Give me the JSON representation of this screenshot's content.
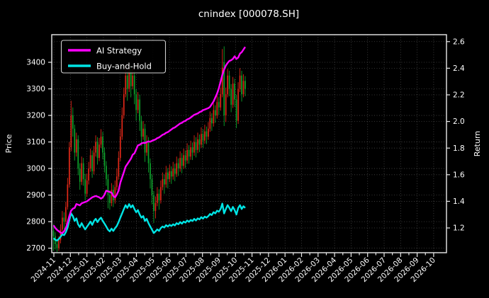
{
  "title": "cnindex [000078.SH]",
  "legend": {
    "items": [
      "AI Strategy",
      "Buy-and-Hold"
    ]
  },
  "colors": {
    "background": "#000000",
    "foreground": "#ffffff",
    "grid": "#4d4d4d",
    "spine": "#eaeaea",
    "candle_up": "#e02818",
    "candle_down": "#0da32b",
    "ai_strategy": "#ff00ff",
    "buy_and_hold": "#00e5e5"
  },
  "chart_data": {
    "type": "candlestick+line",
    "title": "cnindex [000078.SH]",
    "ylabel_left": "Price",
    "ylabel_right": "Return",
    "x_tick_labels": [
      "2024-11",
      "2024-12",
      "2025-01",
      "2025-02",
      "2025-03",
      "2025-04",
      "2025-05",
      "2025-06",
      "2025-07",
      "2025-08",
      "2025-09",
      "2025-10",
      "2025-11",
      "2025-12",
      "2026-01",
      "2026-02",
      "2026-03",
      "2026-04",
      "2026-05",
      "2026-06",
      "2026-07",
      "2026-08",
      "2026-09",
      "2026-10"
    ],
    "data_start_label": "2024-11",
    "data_end_label": "2025-10",
    "left_ticks": [
      2700,
      2800,
      2900,
      3000,
      3100,
      3200,
      3300,
      3400
    ],
    "right_ticks": [
      1.2,
      1.4,
      1.6,
      1.8,
      2.0,
      2.2,
      2.4,
      2.6
    ],
    "right_tick_labels": [
      "1.2",
      "1.4",
      "1.6",
      "1.8",
      "2.0",
      "2.2",
      "2.4",
      "2.6"
    ],
    "ylim_left": [
      2683,
      3504
    ],
    "ylim_right": [
      1.014,
      2.652
    ],
    "grid": true,
    "legend_position": "upper-left",
    "candles": {
      "ohlc": [
        [
          2765,
          2790,
          2690,
          2745
        ],
        [
          2745,
          2760,
          2695,
          2715
        ],
        [
          2715,
          2730,
          2686,
          2700
        ],
        [
          2700,
          2745,
          2690,
          2730
        ],
        [
          2730,
          2790,
          2718,
          2770
        ],
        [
          2770,
          2840,
          2758,
          2815
        ],
        [
          2815,
          2835,
          2772,
          2800
        ],
        [
          2800,
          2875,
          2790,
          2855
        ],
        [
          2855,
          2965,
          2845,
          2940
        ],
        [
          2940,
          3100,
          2928,
          3080
        ],
        [
          3080,
          3255,
          3065,
          3200
        ],
        [
          3200,
          3230,
          3120,
          3150
        ],
        [
          3150,
          3165,
          3030,
          3060
        ],
        [
          3060,
          3135,
          3045,
          3110
        ],
        [
          3110,
          3125,
          2975,
          3000
        ],
        [
          3000,
          3020,
          2920,
          2950
        ],
        [
          2950,
          3045,
          2938,
          3020
        ],
        [
          3020,
          3040,
          2935,
          2960
        ],
        [
          2960,
          2980,
          2880,
          2905
        ],
        [
          2905,
          2980,
          2893,
          2955
        ],
        [
          2955,
          3025,
          2940,
          3000
        ],
        [
          3000,
          3075,
          2988,
          3050
        ],
        [
          3050,
          3068,
          2965,
          2990
        ],
        [
          2990,
          3085,
          2978,
          3060
        ],
        [
          3060,
          3125,
          3045,
          3100
        ],
        [
          3100,
          3118,
          3015,
          3040
        ],
        [
          3040,
          3115,
          3028,
          3090
        ],
        [
          3090,
          3148,
          3078,
          3120
        ],
        [
          3120,
          3138,
          3035,
          3060
        ],
        [
          3060,
          3080,
          2985,
          3010
        ],
        [
          3010,
          3028,
          2935,
          2960
        ],
        [
          2960,
          2978,
          2850,
          2900
        ],
        [
          2900,
          2918,
          2845,
          2870
        ],
        [
          2870,
          2945,
          2858,
          2920
        ],
        [
          2920,
          2938,
          2855,
          2880
        ],
        [
          2880,
          2955,
          2868,
          2930
        ],
        [
          2930,
          3000,
          2918,
          2970
        ],
        [
          2970,
          3065,
          2958,
          3040
        ],
        [
          3040,
          3150,
          3028,
          3120
        ],
        [
          3120,
          3230,
          3108,
          3200
        ],
        [
          3200,
          3305,
          3188,
          3280
        ],
        [
          3280,
          3390,
          3268,
          3350
        ],
        [
          3350,
          3368,
          3255,
          3300
        ],
        [
          3300,
          3395,
          3288,
          3370
        ],
        [
          3370,
          3388,
          3268,
          3310
        ],
        [
          3310,
          3378,
          3298,
          3350
        ],
        [
          3350,
          3368,
          3242,
          3280
        ],
        [
          3280,
          3298,
          3180,
          3220
        ],
        [
          3220,
          3288,
          3208,
          3260
        ],
        [
          3260,
          3278,
          3142,
          3180
        ],
        [
          3180,
          3198,
          3085,
          3120
        ],
        [
          3120,
          3178,
          3108,
          3150
        ],
        [
          3150,
          3168,
          3025,
          3060
        ],
        [
          3060,
          3125,
          3048,
          3100
        ],
        [
          3100,
          3118,
          2985,
          3020
        ],
        [
          3020,
          3038,
          2925,
          2960
        ],
        [
          2960,
          2978,
          2865,
          2900
        ],
        [
          2900,
          2915,
          2795,
          2840
        ],
        [
          2840,
          2895,
          2812,
          2870
        ],
        [
          2870,
          2930,
          2858,
          2905
        ],
        [
          2905,
          2922,
          2845,
          2880
        ],
        [
          2880,
          2955,
          2868,
          2930
        ],
        [
          2930,
          2985,
          2918,
          2960
        ],
        [
          2960,
          2978,
          2905,
          2940
        ],
        [
          2940,
          3010,
          2928,
          2985
        ],
        [
          2985,
          3002,
          2925,
          2960
        ],
        [
          2960,
          3015,
          2948,
          2990
        ],
        [
          2990,
          3008,
          2942,
          2970
        ],
        [
          2970,
          3025,
          2958,
          3000
        ],
        [
          3000,
          3018,
          2952,
          2980
        ],
        [
          2980,
          3045,
          2968,
          3020
        ],
        [
          3020,
          3038,
          2972,
          3000
        ],
        [
          3000,
          3065,
          2988,
          3040
        ],
        [
          3040,
          3058,
          2982,
          3010
        ],
        [
          3010,
          3075,
          2998,
          3050
        ],
        [
          3050,
          3068,
          3002,
          3030
        ],
        [
          3030,
          3095,
          3018,
          3070
        ],
        [
          3070,
          3088,
          3018,
          3045
        ],
        [
          3045,
          3105,
          3033,
          3080
        ],
        [
          3080,
          3098,
          3032,
          3060
        ],
        [
          3060,
          3125,
          3048,
          3100
        ],
        [
          3100,
          3118,
          3042,
          3070
        ],
        [
          3070,
          3135,
          3058,
          3110
        ],
        [
          3110,
          3128,
          3062,
          3090
        ],
        [
          3090,
          3155,
          3078,
          3130
        ],
        [
          3130,
          3148,
          3078,
          3105
        ],
        [
          3105,
          3165,
          3093,
          3140
        ],
        [
          3140,
          3158,
          3092,
          3120
        ],
        [
          3120,
          3175,
          3108,
          3150
        ],
        [
          3150,
          3215,
          3138,
          3190
        ],
        [
          3190,
          3208,
          3142,
          3170
        ],
        [
          3170,
          3245,
          3158,
          3220
        ],
        [
          3220,
          3238,
          3172,
          3200
        ],
        [
          3200,
          3275,
          3188,
          3250
        ],
        [
          3250,
          3268,
          3202,
          3230
        ],
        [
          3230,
          3305,
          3218,
          3280
        ],
        [
          3280,
          3450,
          3268,
          3380
        ],
        [
          3400,
          3460,
          3160,
          3200
        ],
        [
          3200,
          3305,
          3175,
          3280
        ],
        [
          3280,
          3375,
          3268,
          3350
        ],
        [
          3350,
          3368,
          3272,
          3300
        ],
        [
          3300,
          3318,
          3212,
          3240
        ],
        [
          3240,
          3345,
          3228,
          3320
        ],
        [
          3320,
          3338,
          3232,
          3260
        ],
        [
          3260,
          3278,
          3152,
          3180
        ],
        [
          3180,
          3325,
          3168,
          3300
        ],
        [
          3300,
          3378,
          3288,
          3350
        ],
        [
          3350,
          3368,
          3252,
          3280
        ],
        [
          3280,
          3355,
          3268,
          3330
        ],
        [
          3330,
          3348,
          3272,
          3300
        ]
      ]
    },
    "series": [
      {
        "name": "AI Strategy",
        "axis": "right",
        "color": "#ff00ff",
        "values": [
          1.22,
          1.2,
          1.185,
          1.175,
          1.165,
          1.16,
          1.175,
          1.2,
          1.24,
          1.29,
          1.33,
          1.345,
          1.35,
          1.38,
          1.375,
          1.37,
          1.385,
          1.39,
          1.395,
          1.4,
          1.41,
          1.42,
          1.43,
          1.435,
          1.44,
          1.435,
          1.43,
          1.42,
          1.43,
          1.45,
          1.48,
          1.475,
          1.47,
          1.465,
          1.44,
          1.43,
          1.45,
          1.48,
          1.54,
          1.58,
          1.62,
          1.66,
          1.68,
          1.7,
          1.72,
          1.75,
          1.76,
          1.79,
          1.82,
          1.825,
          1.835,
          1.84,
          1.838,
          1.845,
          1.85,
          1.848,
          1.855,
          1.86,
          1.865,
          1.875,
          1.88,
          1.89,
          1.9,
          1.905,
          1.915,
          1.92,
          1.93,
          1.94,
          1.95,
          1.955,
          1.965,
          1.975,
          1.985,
          1.99,
          2.0,
          2.005,
          2.015,
          2.02,
          2.03,
          2.04,
          2.05,
          2.055,
          2.06,
          2.07,
          2.075,
          2.085,
          2.09,
          2.095,
          2.1,
          2.11,
          2.13,
          2.15,
          2.18,
          2.21,
          2.25,
          2.3,
          2.35,
          2.39,
          2.42,
          2.44,
          2.455,
          2.46,
          2.47,
          2.49,
          2.47,
          2.48,
          2.51,
          2.52,
          2.54,
          2.56
        ]
      },
      {
        "name": "Buy-and-Hold",
        "axis": "right",
        "color": "#00e5e5",
        "values": [
          1.123,
          1.111,
          1.105,
          1.117,
          1.133,
          1.152,
          1.146,
          1.168,
          1.203,
          1.26,
          1.309,
          1.289,
          1.252,
          1.272,
          1.227,
          1.207,
          1.236,
          1.211,
          1.189,
          1.209,
          1.227,
          1.248,
          1.223,
          1.252,
          1.268,
          1.244,
          1.264,
          1.277,
          1.252,
          1.232,
          1.211,
          1.187,
          1.174,
          1.195,
          1.178,
          1.199,
          1.215,
          1.244,
          1.277,
          1.309,
          1.342,
          1.371,
          1.35,
          1.379,
          1.354,
          1.371,
          1.342,
          1.318,
          1.334,
          1.301,
          1.277,
          1.289,
          1.252,
          1.268,
          1.236,
          1.211,
          1.187,
          1.162,
          1.174,
          1.189,
          1.178,
          1.199,
          1.211,
          1.203,
          1.221,
          1.211,
          1.223,
          1.215,
          1.227,
          1.219,
          1.236,
          1.227,
          1.244,
          1.232,
          1.248,
          1.24,
          1.256,
          1.246,
          1.26,
          1.252,
          1.268,
          1.256,
          1.272,
          1.264,
          1.281,
          1.27,
          1.285,
          1.277,
          1.289,
          1.305,
          1.297,
          1.318,
          1.309,
          1.33,
          1.322,
          1.342,
          1.383,
          1.309,
          1.342,
          1.371,
          1.35,
          1.326,
          1.358,
          1.334,
          1.301,
          1.35,
          1.371,
          1.342,
          1.363,
          1.35
        ]
      }
    ]
  }
}
